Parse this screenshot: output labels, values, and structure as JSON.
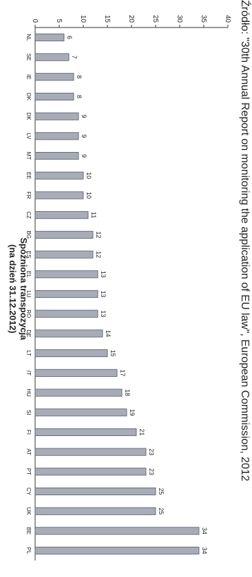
{
  "chart_data": {
    "type": "bar",
    "title": "Spóźniona transpozycja",
    "subtitle": "(na dzień 31.12.2012)",
    "categories": [
      "NL",
      "SE",
      "IE",
      "DK",
      "DK",
      "LV",
      "MT",
      "EE",
      "FR",
      "CZ",
      "BG",
      "ES",
      "EL",
      "LU",
      "RO",
      "DE",
      "LT",
      "IT",
      "HU",
      "SI",
      "FI",
      "AT",
      "PT",
      "CY",
      "UK",
      "BE",
      "PL"
    ],
    "values": [
      6,
      7,
      8,
      8,
      9,
      9,
      9,
      10,
      10,
      11,
      12,
      12,
      13,
      13,
      13,
      14,
      15,
      17,
      18,
      19,
      21,
      23,
      23,
      25,
      25,
      34,
      34
    ],
    "ylim": [
      0,
      40
    ],
    "yticks": [
      0,
      5,
      10,
      15,
      20,
      25,
      30,
      35,
      40
    ],
    "grid": false,
    "legend": "none",
    "colors": {
      "bar": "#a8acb6",
      "bar_stroke": "#55596a",
      "axis": "#333333",
      "text": "#222222"
    }
  },
  "source": "Źródło: \"30th Annual Report on monitoring the application of EU law\", European Commission, 2012"
}
